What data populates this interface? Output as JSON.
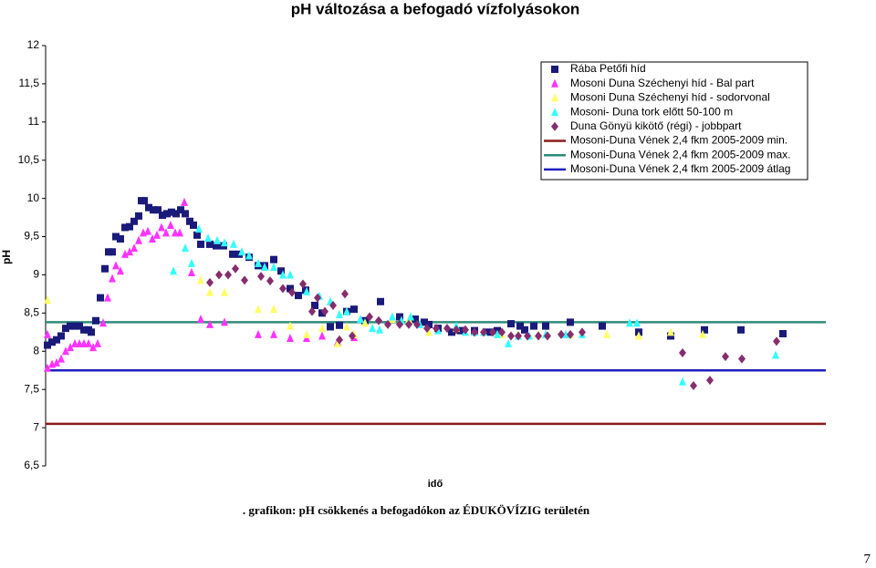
{
  "chart_data": {
    "type": "scatter",
    "title": "pH változása a befogadó vízfolyásokon",
    "ylabel": "pH",
    "xlabel": "idő",
    "caption": ". grafikon: pH csökkenés a befogadókon az ÉDUKÖVÍZIG területén",
    "page_number": "7",
    "ylim": [
      6.5,
      12
    ],
    "yticks": [
      {
        "value": 6.5,
        "label": "6,5"
      },
      7,
      {
        "value": 7.5,
        "label": "7,5"
      },
      8,
      {
        "value": 8.5,
        "label": "8,5"
      },
      9,
      {
        "value": 9.5,
        "label": "9,5"
      },
      10,
      {
        "value": 10.5,
        "label": "10,5"
      },
      11,
      {
        "value": 11.5,
        "label": "11,5"
      },
      12
    ],
    "xlim": [
      0,
      171
    ],
    "series": [
      {
        "name": "Rába Petőfi híd",
        "color": "#1a1a7a",
        "marker": "square",
        "x": [
          0.4,
          1.4,
          2.4,
          3.4,
          4.4,
          5.4,
          6.4,
          7.4,
          8.4,
          9.4,
          10,
          11,
          12,
          13,
          13.8,
          14.6,
          15.4,
          16.4,
          17.4,
          18.4,
          19.4,
          20.4,
          21,
          21.6,
          22.6,
          23.6,
          24.6,
          25.6,
          26.6,
          27.6,
          28.6,
          29.6,
          30.6,
          31.6,
          32.4,
          33.2,
          34,
          36,
          37.4,
          39,
          41,
          42.4,
          44.6,
          46.6,
          48,
          50,
          51.6,
          53.6,
          55.4,
          57,
          59,
          60.6,
          62.4,
          64.4,
          66,
          67.6,
          70,
          73.4,
          77.6,
          81,
          83,
          84,
          86,
          89,
          91,
          94,
          97,
          99,
          102,
          104,
          105,
          107,
          109.6,
          115,
          122,
          130,
          137,
          144.4,
          152.4,
          161.6
        ],
        "values": [
          8.08,
          8.12,
          8.15,
          8.2,
          8.3,
          8.33,
          8.33,
          8.33,
          8.28,
          8.28,
          8.25,
          8.4,
          8.7,
          9.08,
          9.3,
          9.3,
          9.5,
          9.47,
          9.62,
          9.63,
          9.7,
          9.77,
          9.97,
          9.97,
          9.88,
          9.85,
          9.85,
          9.78,
          9.8,
          9.82,
          9.8,
          9.85,
          9.8,
          9.7,
          9.65,
          9.52,
          9.4,
          9.4,
          9.38,
          9.38,
          9.27,
          9.27,
          9.23,
          9.12,
          9.12,
          9.2,
          9.05,
          8.82,
          8.73,
          8.8,
          8.6,
          8.5,
          8.32,
          8.34,
          8.52,
          8.55,
          8.4,
          8.65,
          8.45,
          8.42,
          8.38,
          8.35,
          8.3,
          8.25,
          8.27,
          8.27,
          8.25,
          8.27,
          8.36,
          8.33,
          8.28,
          8.33,
          8.33,
          8.38,
          8.33,
          8.25,
          8.2,
          8.28,
          8.28,
          8.23
        ]
      },
      {
        "name": "Mosoni Duna Széchenyi híd - Bal part",
        "color": "#ff33ff",
        "marker": "triangle",
        "x": [
          0.4,
          1.4,
          2.4,
          3.4,
          4.4,
          5.4,
          6.4,
          7.4,
          8.4,
          9.4,
          10.4,
          11.4,
          12.6,
          13.6,
          14.6,
          15.4,
          16.4,
          17.4,
          18.4,
          19.4,
          20.4,
          21.4,
          22.4,
          23.4,
          24.4,
          25.4,
          26.4,
          27.4,
          28.4,
          29.4,
          30.4,
          32,
          34,
          36,
          39.2,
          46.6,
          50,
          53.6,
          57.2,
          60.6,
          64,
          67.6,
          0.4
        ],
        "values": [
          7.78,
          7.83,
          7.85,
          7.9,
          8.0,
          8.05,
          8.1,
          8.1,
          8.1,
          8.1,
          8.05,
          8.1,
          8.37,
          8.7,
          8.95,
          9.12,
          9.05,
          9.27,
          9.3,
          9.35,
          9.45,
          9.55,
          9.57,
          9.47,
          9.52,
          9.62,
          9.55,
          9.65,
          9.55,
          9.55,
          9.95,
          9.03,
          8.42,
          8.35,
          8.38,
          8.22,
          8.22,
          8.17,
          8.17,
          8.2,
          8.12,
          8.18,
          8.22
        ]
      },
      {
        "name": "Mosoni Duna Széchenyi híd - sodorvonal",
        "color": "#ffff66",
        "marker": "triangle",
        "x": [
          0.4,
          34,
          36,
          39.2,
          46.6,
          50,
          53.6,
          57.2,
          60.6,
          64,
          66,
          67.6,
          70,
          76,
          79.6,
          84,
          90,
          96,
          100,
          108,
          115,
          123,
          130,
          137,
          144
        ],
        "values": [
          8.67,
          8.93,
          8.77,
          8.77,
          8.55,
          8.55,
          8.33,
          8.22,
          8.3,
          8.1,
          8.32,
          8.22,
          8.37,
          8.42,
          8.42,
          8.25,
          8.3,
          8.25,
          8.22,
          8.22,
          8.22,
          8.22,
          8.2,
          8.25,
          8.22
        ]
      },
      {
        "name": "Mosoni- Duna tork előtt 50-100  m",
        "color": "#33ffff",
        "marker": "triangle",
        "x": [
          28,
          30.6,
          32,
          33.6,
          35.6,
          37.6,
          39.2,
          41.2,
          43,
          44.6,
          46.6,
          48,
          50,
          52,
          53.6,
          57.2,
          60,
          62.4,
          64.4,
          66,
          69,
          71.6,
          73.2,
          76,
          78,
          80,
          82,
          86,
          90,
          92,
          94,
          96,
          99,
          101.4,
          103.6,
          106,
          109.6,
          114,
          117.6,
          128,
          129.6,
          139.6,
          160
        ],
        "values": [
          9.05,
          9.35,
          9.15,
          9.6,
          9.48,
          9.45,
          9.42,
          9.4,
          9.3,
          9.25,
          9.15,
          9.1,
          9.1,
          9.0,
          9.0,
          8.78,
          8.72,
          8.65,
          8.48,
          8.52,
          8.42,
          8.3,
          8.28,
          8.45,
          8.4,
          8.45,
          8.35,
          8.27,
          8.33,
          8.25,
          8.25,
          8.25,
          8.22,
          8.1,
          8.2,
          8.2,
          8.22,
          8.22,
          8.22,
          8.37,
          8.37,
          7.6,
          7.95
        ]
      },
      {
        "name": "Duna Gönyü kikötő (régi) - jobbpart",
        "color": "#862d6e",
        "marker": "diamond",
        "x": [
          36,
          38,
          40,
          41.6,
          43.6,
          47.2,
          49.2,
          52,
          54,
          56.4,
          58.4,
          59.6,
          61.2,
          63,
          64.4,
          65.6,
          67.2,
          71,
          73,
          75,
          77.6,
          79.6,
          81.4,
          83.6,
          85.6,
          88,
          90,
          92,
          94,
          96,
          98,
          100,
          102,
          103.6,
          105.6,
          108,
          110,
          113,
          115,
          117.6,
          139.6,
          142,
          145.6,
          149,
          152.6,
          160.2
        ],
        "values": [
          8.9,
          9.0,
          9.0,
          9.08,
          8.93,
          8.98,
          8.92,
          8.82,
          8.77,
          8.88,
          8.52,
          8.7,
          8.52,
          8.6,
          8.15,
          8.75,
          8.2,
          8.45,
          8.4,
          8.35,
          8.35,
          8.35,
          8.35,
          8.3,
          8.3,
          8.3,
          8.28,
          8.28,
          8.25,
          8.25,
          8.25,
          8.25,
          8.2,
          8.2,
          8.2,
          8.2,
          8.2,
          8.22,
          8.22,
          8.25,
          7.98,
          7.55,
          7.62,
          7.93,
          7.9,
          8.13
        ]
      }
    ],
    "lines": [
      {
        "name": "Mosoni-Duna Vének 2,4 fkm 2005-2009 min.",
        "color": "#8b1a1a",
        "value": 7.05
      },
      {
        "name": "Mosoni-Duna Vének 2,4 fkm 2005-2009 max.",
        "color": "#2e8b7a",
        "value": 8.38
      },
      {
        "name": "Mosoni-Duna Vének 2,4 fkm 2005-2009 átlag",
        "color": "#1f1fbf",
        "value": 7.75
      }
    ]
  }
}
